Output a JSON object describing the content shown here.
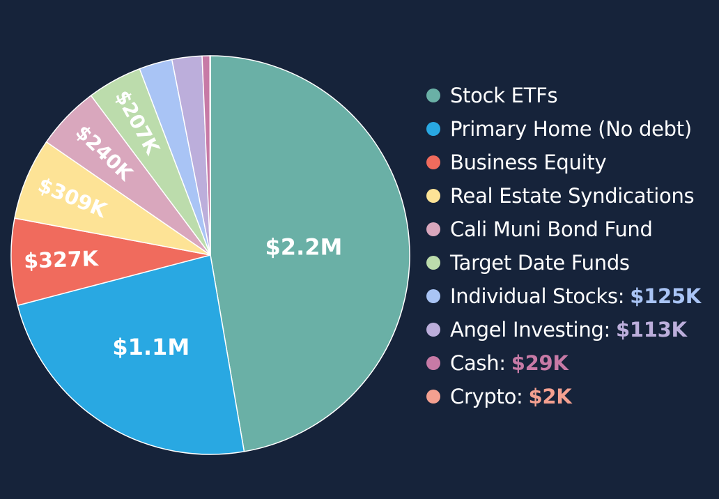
{
  "chart_data": {
    "type": "pie",
    "start_angle_deg": 0,
    "legend_placement": "right",
    "slices": [
      {
        "name": "Stock ETFs",
        "value": 2200000,
        "label": "$2.2M",
        "legend_value": "",
        "color": "#6ab0a6",
        "value_color": ""
      },
      {
        "name": "Primary Home (No debt)",
        "value": 1100000,
        "label": "$1.1M",
        "legend_value": "",
        "color": "#29a8e2",
        "value_color": ""
      },
      {
        "name": "Business Equity",
        "value": 327000,
        "label": "$327K",
        "legend_value": "",
        "color": "#f06b5d",
        "value_color": ""
      },
      {
        "name": "Real Estate Syndications",
        "value": 309000,
        "label": "$309K",
        "legend_value": "",
        "color": "#fde396",
        "value_color": ""
      },
      {
        "name": "Cali Muni Bond Fund",
        "value": 240000,
        "label": "$240K",
        "legend_value": "",
        "color": "#d9a7bd",
        "value_color": ""
      },
      {
        "name": "Target Date Funds",
        "value": 207000,
        "label": "$207K",
        "legend_value": "",
        "color": "#bcdcac",
        "value_color": ""
      },
      {
        "name": "Individual Stocks:",
        "value": 125000,
        "label": "",
        "legend_value": "$125K",
        "color": "#a9c4f5",
        "value_color": "#a9c4f5"
      },
      {
        "name": "Angel Investing:",
        "value": 113000,
        "label": "",
        "legend_value": "$113K",
        "color": "#bcaedb",
        "value_color": "#bcaedb"
      },
      {
        "name": "Cash:",
        "value": 29000,
        "label": "",
        "legend_value": "$29K",
        "color": "#c77aa6",
        "value_color": "#c77aa6"
      },
      {
        "name": "Crypto:",
        "value": 2000,
        "label": "",
        "legend_value": "$2K",
        "color": "#f4a090",
        "value_color": "#f4a090"
      }
    ]
  }
}
